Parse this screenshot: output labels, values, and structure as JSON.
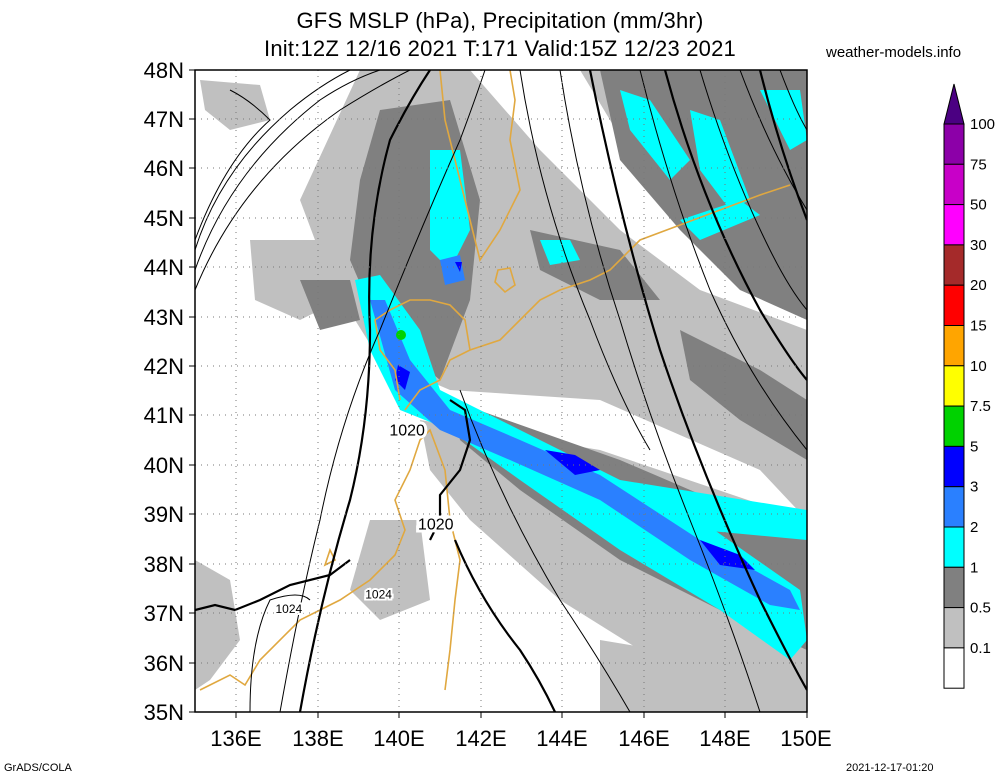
{
  "header": {
    "title_line1": "GFS MSLP (hPa), Precipitation (mm/3hr)",
    "title_line2": "Init:12Z 12/16 2021 T:171 Valid:15Z 12/23 2021",
    "site": "weather-models.info"
  },
  "axes": {
    "lat_labels": [
      "48N",
      "47N",
      "46N",
      "45N",
      "44N",
      "43N",
      "42N",
      "41N",
      "40N",
      "39N",
      "38N",
      "37N",
      "36N",
      "35N"
    ],
    "lon_labels": [
      "136E",
      "138E",
      "140E",
      "142E",
      "144E",
      "146E",
      "148E",
      "150E"
    ],
    "lat_range": [
      35,
      48
    ],
    "lon_range": [
      135,
      150
    ]
  },
  "legend": {
    "levels": [
      "100",
      "75",
      "50",
      "30",
      "20",
      "15",
      "10",
      "7.5",
      "5",
      "3",
      "2",
      "1",
      "0.5",
      "0.1"
    ],
    "colors": [
      "#8c00a8",
      "#c800c8",
      "#ff00ff",
      "#a52a2a",
      "#ff0000",
      "#ffa500",
      "#ffff00",
      "#00d200",
      "#0000ff",
      "#2a80ff",
      "#00ffff",
      "#808080",
      "#c0c0c0",
      "#ffffff"
    ]
  },
  "isobars": {
    "labels": [
      {
        "text": "1020",
        "lon": 140.2,
        "lat": 40.6
      },
      {
        "text": "1020",
        "lon": 140.9,
        "lat": 38.7
      },
      {
        "text": "1024",
        "lon": 139.5,
        "lat": 37.3
      },
      {
        "text": "1024",
        "lon": 137.3,
        "lat": 37.0
      }
    ]
  },
  "footer": {
    "left": "GrADS/COLA",
    "right": "2021-12-17-01:20"
  }
}
